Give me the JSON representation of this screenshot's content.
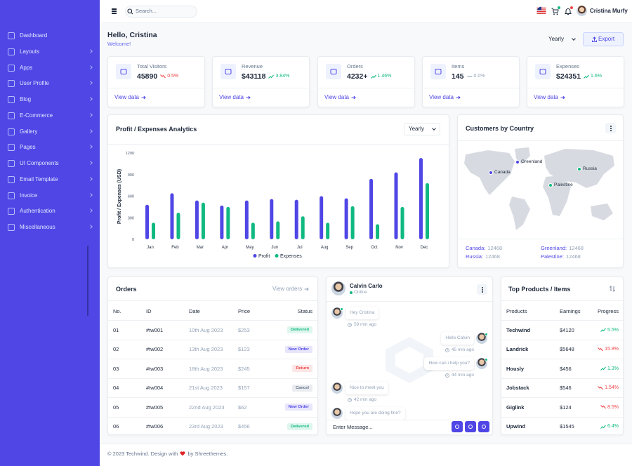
{
  "sidebar": {
    "items": [
      "Dashboard",
      "Layouts",
      "Apps",
      "User Profile",
      "Blog",
      "E-Commerce",
      "Gallery",
      "Pages",
      "UI Components",
      "Email Template",
      "Invoice",
      "Authentication",
      "Miscellaneous"
    ]
  },
  "header": {
    "search_placeholder": "Search...",
    "user_name": "Cristina Murfy"
  },
  "greeting": {
    "title": "Hello, Cristina",
    "subtitle": "Welcome!",
    "period": "Yearly",
    "export": "Export"
  },
  "stats": [
    {
      "label": "Total Visitors",
      "value": "45890",
      "change": "0.5%",
      "trend": "down",
      "trend_color": "#ef4444",
      "link": "View data"
    },
    {
      "label": "Revenue",
      "value": "$43118",
      "change": "3.84%",
      "trend": "up",
      "trend_color": "#10b981",
      "link": "View data"
    },
    {
      "label": "Orders",
      "value": "4232+",
      "change": "1.46%",
      "trend": "up",
      "trend_color": "#10b981",
      "link": "View data"
    },
    {
      "label": "Items",
      "value": "145",
      "change": "0.0%",
      "trend": "flat",
      "trend_color": "#94a3b8",
      "link": "View data"
    },
    {
      "label": "Expenses",
      "value": "$24351",
      "change": "1.6%",
      "trend": "up",
      "trend_color": "#10b981",
      "link": "View data"
    }
  ],
  "chart_data": {
    "type": "bar",
    "title": "Profit / Expenses Analytics",
    "period": "Yearly",
    "y_label": "Profit / Expenses (USD)",
    "categories": [
      "Jan",
      "Feb",
      "Mar",
      "Apr",
      "May",
      "Jun",
      "Jul",
      "Aug",
      "Sep",
      "Oct",
      "Nov",
      "Dec"
    ],
    "series": [
      {
        "name": "Profit",
        "color": "#4f46e5",
        "values": [
          480,
          640,
          540,
          470,
          540,
          560,
          550,
          600,
          570,
          840,
          930,
          1130
        ]
      },
      {
        "name": "Expenses",
        "color": "#10b981",
        "values": [
          230,
          370,
          510,
          450,
          230,
          250,
          320,
          230,
          460,
          210,
          450,
          780
        ]
      }
    ],
    "ylim": [
      0,
      1200
    ],
    "yticks": [
      0,
      300,
      600,
      900,
      1200
    ]
  },
  "countries": {
    "title": "Customers by Country",
    "markers": [
      {
        "name": "Canada",
        "color": "#4f46e5"
      },
      {
        "name": "Greenland",
        "color": "#4f46e5"
      },
      {
        "name": "Russia",
        "color": "#10b981"
      },
      {
        "name": "Palestine",
        "color": "#10b981"
      }
    ],
    "stats": [
      {
        "label": "Canada:",
        "value": "12468"
      },
      {
        "label": "Greenland:",
        "value": "12468"
      },
      {
        "label": "Russia:",
        "value": "12468"
      },
      {
        "label": "Palestine:",
        "value": "12468"
      }
    ]
  },
  "orders": {
    "title": "Orders",
    "link": "View orders",
    "columns": [
      "No.",
      "ID",
      "Date",
      "Price",
      "Status"
    ],
    "rows": [
      {
        "no": "01",
        "id": "#tw001",
        "date": "10th Aug 2023",
        "price": "$253",
        "status": "Delivered",
        "status_color": "#10b981"
      },
      {
        "no": "02",
        "id": "#tw002",
        "date": "13th Aug 2023",
        "price": "$123",
        "status": "New Order",
        "status_color": "#4f46e5"
      },
      {
        "no": "03",
        "id": "#tw003",
        "date": "18th Aug 2023",
        "price": "$245",
        "status": "Return",
        "status_color": "#ef4444"
      },
      {
        "no": "04",
        "id": "#tw004",
        "date": "21st Aug 2023",
        "price": "$157",
        "status": "Cancel",
        "status_color": "#64748b"
      },
      {
        "no": "05",
        "id": "#tw005",
        "date": "22nd Aug 2023",
        "price": "$62",
        "status": "New Order",
        "status_color": "#4f46e5"
      },
      {
        "no": "06",
        "id": "#tw006",
        "date": "23rd Aug 2023",
        "price": "$456",
        "status": "Delivered",
        "status_color": "#10b981"
      }
    ]
  },
  "chat": {
    "name": "Calvin Carlo",
    "status": "Online",
    "messages": [
      {
        "text": "Hey Cristina",
        "time": "59 min ago",
        "side": "left"
      },
      {
        "text": "Hello Calvin",
        "time": "45 min ago",
        "side": "right"
      },
      {
        "text": "How can i help you?",
        "time": "44 min ago",
        "side": "right"
      },
      {
        "text": "Nice to meet you",
        "time": "42 min ago",
        "side": "left"
      },
      {
        "text": "Hope you are doing fine?",
        "side": "left"
      }
    ],
    "input_placeholder": "Enter Message..."
  },
  "products": {
    "title": "Top Products / Items",
    "columns": [
      "Products",
      "Earnings",
      "Progress"
    ],
    "rows": [
      {
        "name": "Techwind",
        "earnings": "$4120",
        "progress": "5.5%",
        "trend": "up",
        "trend_color": "#10b981"
      },
      {
        "name": "Landrick",
        "earnings": "$5648",
        "progress": "15.8%",
        "trend": "down",
        "trend_color": "#ef4444"
      },
      {
        "name": "Hously",
        "earnings": "$456",
        "progress": "1.3%",
        "trend": "up",
        "trend_color": "#10b981"
      },
      {
        "name": "Jobstack",
        "earnings": "$546",
        "progress": "1.54%",
        "trend": "down",
        "trend_color": "#ef4444"
      },
      {
        "name": "Giglink",
        "earnings": "$124",
        "progress": "8.5%",
        "trend": "down",
        "trend_color": "#ef4444"
      },
      {
        "name": "Upwind",
        "earnings": "$1545",
        "progress": "6.4%",
        "trend": "up",
        "trend_color": "#10b981"
      }
    ]
  },
  "footer": {
    "text_before": "© 2023 Techwind. Design with",
    "text_after": "by Shreethemes."
  }
}
